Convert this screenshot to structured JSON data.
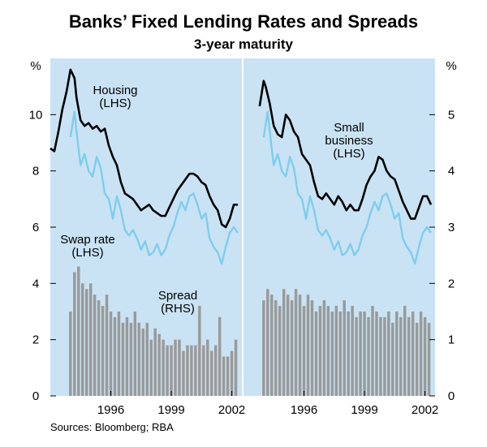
{
  "chart_data": {
    "type": "line",
    "title": "Banks’ Fixed Lending Rates and Spreads",
    "subtitle": "3-year maturity",
    "source": "Sources: Bloomberg; RBA",
    "colors": {
      "panel_bg": "#c9e3f4",
      "lending_line": "#000000",
      "swap_line": "#7fcdee",
      "spread_bar": "#9a9a9a",
      "divider": "#ffffff"
    },
    "x_ticks": [
      "1996",
      "1999",
      "2002"
    ],
    "xlim": [
      1993.0,
      2002.5
    ],
    "left_axis": {
      "unit": "%",
      "ylim": [
        0,
        12
      ],
      "ticks": [
        "0",
        "2",
        "4",
        "6",
        "8",
        "10"
      ]
    },
    "right_axis": {
      "unit": "%",
      "ylim": [
        0,
        6
      ],
      "ticks": [
        "0",
        "1",
        "2",
        "3",
        "4",
        "5"
      ]
    },
    "panels": [
      {
        "name": "Housing",
        "labels": {
          "lending": [
            "Housing",
            "(LHS)"
          ],
          "swap": [
            "Swap rate",
            "(LHS)"
          ],
          "spread": [
            "Spread",
            "(RHS)"
          ]
        },
        "series": [
          {
            "name": "Housing",
            "axis": "left",
            "x": [
              1993.0,
              1993.2,
              1993.4,
              1993.6,
              1993.8,
              1994.0,
              1994.2,
              1994.3,
              1994.5,
              1994.7,
              1994.9,
              1995.1,
              1995.3,
              1995.5,
              1995.7,
              1995.9,
              1996.1,
              1996.3,
              1996.5,
              1996.7,
              1996.9,
              1997.1,
              1997.3,
              1997.5,
              1997.7,
              1997.9,
              1998.1,
              1998.3,
              1998.5,
              1998.7,
              1998.9,
              1999.1,
              1999.3,
              1999.5,
              1999.7,
              1999.9,
              2000.1,
              2000.3,
              2000.5,
              2000.7,
              2000.9,
              2001.1,
              2001.3,
              2001.5,
              2001.7,
              2001.9,
              2002.1,
              2002.3
            ],
            "values": [
              8.8,
              8.7,
              9.4,
              10.2,
              10.8,
              11.6,
              11.3,
              10.6,
              9.8,
              9.6,
              9.7,
              9.5,
              9.6,
              9.4,
              9.5,
              8.9,
              8.5,
              8.2,
              7.6,
              7.2,
              7.1,
              7.0,
              6.8,
              6.6,
              6.7,
              6.8,
              6.6,
              6.5,
              6.4,
              6.4,
              6.7,
              7.0,
              7.3,
              7.5,
              7.7,
              7.9,
              7.9,
              7.8,
              7.6,
              7.5,
              7.1,
              6.8,
              6.6,
              6.1,
              6.0,
              6.3,
              6.8,
              6.8
            ]
          },
          {
            "name": "Swap rate",
            "axis": "left",
            "x": [
              1994.0,
              1994.2,
              1994.3,
              1994.5,
              1994.7,
              1994.9,
              1995.1,
              1995.3,
              1995.5,
              1995.7,
              1995.9,
              1996.1,
              1996.3,
              1996.5,
              1996.7,
              1996.9,
              1997.1,
              1997.3,
              1997.5,
              1997.7,
              1997.9,
              1998.1,
              1998.3,
              1998.5,
              1998.7,
              1998.9,
              1999.1,
              1999.3,
              1999.5,
              1999.7,
              1999.9,
              2000.1,
              2000.3,
              2000.5,
              2000.7,
              2000.9,
              2001.1,
              2001.3,
              2001.5,
              2001.7,
              2001.9,
              2002.1,
              2002.3
            ],
            "values": [
              9.2,
              10.1,
              9.4,
              8.2,
              8.6,
              8.0,
              7.8,
              8.5,
              8.1,
              7.2,
              7.0,
              6.3,
              7.1,
              6.6,
              5.9,
              5.7,
              5.9,
              5.6,
              5.2,
              5.5,
              5.0,
              5.1,
              5.4,
              5.0,
              5.2,
              5.7,
              6.0,
              6.5,
              6.9,
              6.6,
              7.1,
              7.2,
              6.8,
              6.3,
              6.5,
              5.6,
              5.3,
              5.1,
              4.7,
              5.3,
              5.8,
              6.0,
              5.8
            ]
          },
          {
            "name": "Spread",
            "axis": "right",
            "type": "bar",
            "x": [
              1994.0,
              1994.2,
              1994.4,
              1994.6,
              1994.8,
              1995.0,
              1995.2,
              1995.4,
              1995.6,
              1995.8,
              1996.0,
              1996.2,
              1996.4,
              1996.6,
              1996.8,
              1997.0,
              1997.2,
              1997.4,
              1997.6,
              1997.8,
              1998.0,
              1998.2,
              1998.4,
              1998.6,
              1998.8,
              1999.0,
              1999.2,
              1999.4,
              1999.6,
              1999.8,
              2000.0,
              2000.2,
              2000.4,
              2000.6,
              2000.8,
              2001.0,
              2001.2,
              2001.4,
              2001.6,
              2001.8,
              2002.0,
              2002.2
            ],
            "values": [
              1.5,
              2.2,
              2.3,
              2.0,
              1.9,
              2.0,
              1.8,
              1.7,
              1.6,
              1.8,
              1.5,
              1.4,
              1.5,
              1.3,
              1.4,
              1.3,
              1.5,
              1.3,
              1.2,
              1.3,
              1.0,
              1.2,
              1.1,
              1.0,
              0.9,
              0.9,
              1.0,
              1.0,
              0.8,
              0.9,
              0.9,
              0.9,
              1.6,
              0.9,
              1.0,
              0.8,
              0.9,
              1.4,
              0.7,
              0.7,
              0.8,
              1.0
            ]
          }
        ]
      },
      {
        "name": "Small business",
        "labels": {
          "lending": [
            "Small",
            "business",
            "(LHS)"
          ]
        },
        "series": [
          {
            "name": "Small business",
            "axis": "left",
            "x": [
              1993.8,
              1994.0,
              1994.1,
              1994.3,
              1994.5,
              1994.7,
              1994.9,
              1995.1,
              1995.3,
              1995.5,
              1995.7,
              1995.9,
              1996.1,
              1996.3,
              1996.5,
              1996.7,
              1996.9,
              1997.1,
              1997.3,
              1997.5,
              1997.7,
              1997.9,
              1998.1,
              1998.3,
              1998.5,
              1998.7,
              1998.9,
              1999.1,
              1999.3,
              1999.5,
              1999.7,
              1999.9,
              2000.1,
              2000.3,
              2000.5,
              2000.7,
              2000.9,
              2001.1,
              2001.3,
              2001.5,
              2001.7,
              2001.9,
              2002.1,
              2002.3
            ],
            "values": [
              10.3,
              11.2,
              11.0,
              10.4,
              9.6,
              9.3,
              9.2,
              10.0,
              9.8,
              9.4,
              9.2,
              8.6,
              8.4,
              8.2,
              7.6,
              7.1,
              7.0,
              7.2,
              7.0,
              6.8,
              7.1,
              6.9,
              6.6,
              6.8,
              6.6,
              6.6,
              7.0,
              7.5,
              7.8,
              8.0,
              8.5,
              8.4,
              8.0,
              7.8,
              7.7,
              7.3,
              6.9,
              6.6,
              6.3,
              6.3,
              6.7,
              7.1,
              7.1,
              6.8
            ]
          },
          {
            "name": "Swap rate",
            "axis": "left",
            "x": [
              1994.0,
              1994.2,
              1994.3,
              1994.5,
              1994.7,
              1994.9,
              1995.1,
              1995.3,
              1995.5,
              1995.7,
              1995.9,
              1996.1,
              1996.3,
              1996.5,
              1996.7,
              1996.9,
              1997.1,
              1997.3,
              1997.5,
              1997.7,
              1997.9,
              1998.1,
              1998.3,
              1998.5,
              1998.7,
              1998.9,
              1999.1,
              1999.3,
              1999.5,
              1999.7,
              1999.9,
              2000.1,
              2000.3,
              2000.5,
              2000.7,
              2000.9,
              2001.1,
              2001.3,
              2001.5,
              2001.7,
              2001.9,
              2002.1,
              2002.3
            ],
            "values": [
              9.2,
              10.1,
              9.4,
              8.2,
              8.6,
              8.0,
              7.8,
              8.5,
              8.1,
              7.2,
              7.0,
              6.3,
              7.1,
              6.6,
              5.9,
              5.7,
              5.9,
              5.6,
              5.2,
              5.5,
              5.0,
              5.1,
              5.4,
              5.0,
              5.2,
              5.7,
              6.0,
              6.5,
              6.9,
              6.6,
              7.1,
              7.2,
              6.8,
              6.3,
              6.5,
              5.6,
              5.3,
              5.1,
              4.7,
              5.3,
              5.8,
              6.0,
              5.8
            ]
          },
          {
            "name": "Spread",
            "axis": "right",
            "type": "bar",
            "x": [
              1994.0,
              1994.2,
              1994.4,
              1994.6,
              1994.8,
              1995.0,
              1995.2,
              1995.4,
              1995.6,
              1995.8,
              1996.0,
              1996.2,
              1996.4,
              1996.6,
              1996.8,
              1997.0,
              1997.2,
              1997.4,
              1997.6,
              1997.8,
              1998.0,
              1998.2,
              1998.4,
              1998.6,
              1998.8,
              1999.0,
              1999.2,
              1999.4,
              1999.6,
              1999.8,
              2000.0,
              2000.2,
              2000.4,
              2000.6,
              2000.8,
              2001.0,
              2001.2,
              2001.4,
              2001.6,
              2001.8,
              2002.0,
              2002.2
            ],
            "values": [
              1.7,
              1.9,
              1.8,
              1.7,
              1.6,
              1.9,
              1.8,
              1.7,
              1.9,
              1.8,
              1.6,
              1.8,
              1.7,
              1.5,
              1.6,
              1.7,
              1.6,
              1.5,
              1.6,
              1.5,
              1.7,
              1.5,
              1.6,
              1.4,
              1.5,
              1.5,
              1.4,
              1.6,
              1.5,
              1.4,
              1.4,
              1.5,
              1.3,
              1.5,
              1.4,
              1.6,
              1.4,
              1.5,
              1.3,
              1.5,
              1.4,
              1.3
            ]
          }
        ]
      }
    ]
  }
}
